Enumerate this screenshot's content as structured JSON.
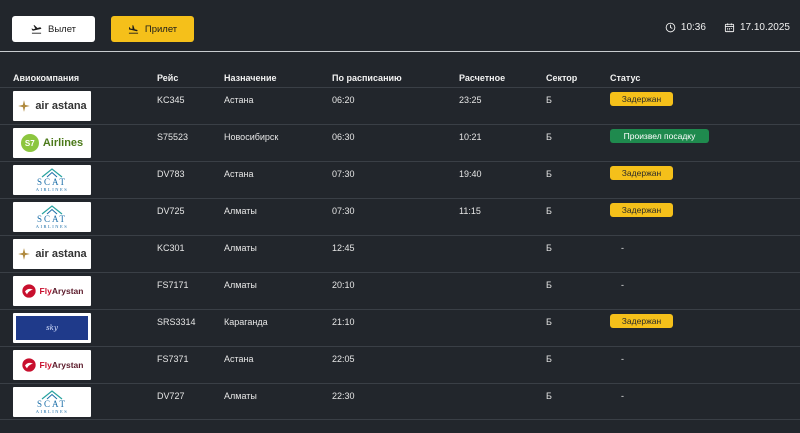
{
  "tabs": {
    "departure_label": "Вылет",
    "arrival_label": "Прилет"
  },
  "clock": {
    "time": "10:36",
    "date": "17.10.2025"
  },
  "columns": {
    "airline": "Авиокомпания",
    "flight": "Рейс",
    "destination": "Назначение",
    "scheduled": "По расписанию",
    "estimated": "Расчетное",
    "sector": "Сектор",
    "status": "Статус"
  },
  "logos": {
    "astana": "air astana",
    "s7_mark": "S7",
    "s7_text": "Airlines",
    "scat_name": "SCAT",
    "scat_sub": "AIRLINES",
    "fly_a": "Fly",
    "fly_b": "Arystan",
    "sky": "sky"
  },
  "flights": [
    {
      "airline_logo": "air-astana",
      "flight": "KC345",
      "destination": "Астана",
      "scheduled": "06:20",
      "estimated": "23:25",
      "sector": "Б",
      "status": "Задержан",
      "status_type": "delayed"
    },
    {
      "airline_logo": "s7-airlines",
      "flight": "S75523",
      "destination": "Новосибирск",
      "scheduled": "06:30",
      "estimated": "10:21",
      "sector": "Б",
      "status": "Произвел посадку",
      "status_type": "landed"
    },
    {
      "airline_logo": "scat-airlines",
      "flight": "DV783",
      "destination": "Астана",
      "scheduled": "07:30",
      "estimated": "19:40",
      "sector": "Б",
      "status": "Задержан",
      "status_type": "delayed"
    },
    {
      "airline_logo": "scat-airlines",
      "flight": "DV725",
      "destination": "Алматы",
      "scheduled": "07:30",
      "estimated": "11:15",
      "sector": "Б",
      "status": "Задержан",
      "status_type": "delayed"
    },
    {
      "airline_logo": "air-astana",
      "flight": "KC301",
      "destination": "Алматы",
      "scheduled": "12:45",
      "estimated": "",
      "sector": "Б",
      "status": "-",
      "status_type": "none"
    },
    {
      "airline_logo": "fly-arystan",
      "flight": "FS7171",
      "destination": "Алматы",
      "scheduled": "20:10",
      "estimated": "",
      "sector": "Б",
      "status": "-",
      "status_type": "none"
    },
    {
      "airline_logo": "sky-blue",
      "flight": "SRS3314",
      "destination": "Караганда",
      "scheduled": "21:10",
      "estimated": "",
      "sector": "Б",
      "status": "Задержан",
      "status_type": "delayed"
    },
    {
      "airline_logo": "fly-arystan",
      "flight": "FS7371",
      "destination": "Астана",
      "scheduled": "22:05",
      "estimated": "",
      "sector": "Б",
      "status": "-",
      "status_type": "none"
    },
    {
      "airline_logo": "scat-airlines",
      "flight": "DV727",
      "destination": "Алматы",
      "scheduled": "22:30",
      "estimated": "",
      "sector": "Б",
      "status": "-",
      "status_type": "none"
    }
  ],
  "colors": {
    "background": "#22262c",
    "accent_yellow": "#f5c01a",
    "landed_green": "#1f8a4e"
  }
}
